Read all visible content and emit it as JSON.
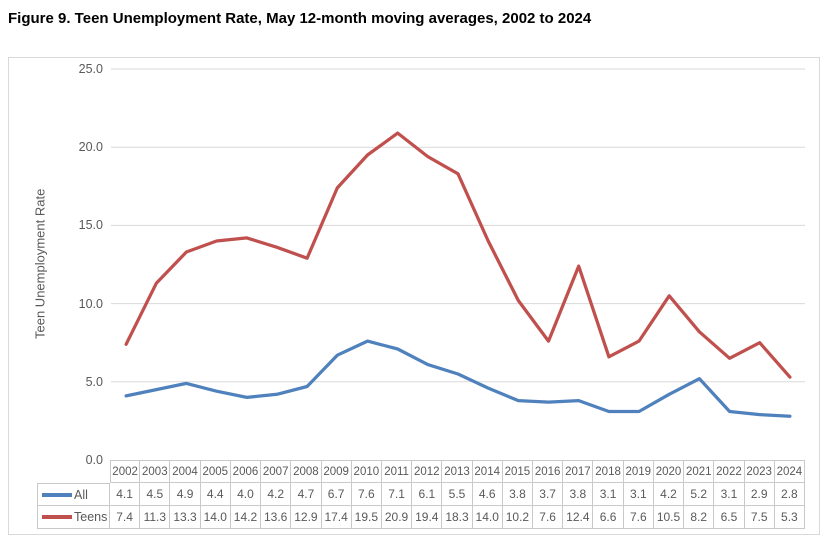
{
  "figure": {
    "title": "Figure 9. Teen Unemployment Rate, May 12-month moving averages, 2002 to 2024"
  },
  "chart_data": {
    "type": "line",
    "title": "Figure 9. Teen Unemployment Rate, May 12-month moving averages, 2002 to 2024",
    "xlabel": "",
    "ylabel": "Teen Unemployment Rate",
    "ylim": [
      0,
      25
    ],
    "yticks": [
      0,
      5,
      10,
      15,
      20,
      25
    ],
    "ytick_labels": [
      "0.0",
      "5.0",
      "10.0",
      "15.0",
      "20.0",
      "25.0"
    ],
    "grid": true,
    "legend_position": "data-table-left",
    "gridline_color": "#d9d9d9",
    "categories": [
      "2002",
      "2003",
      "2004",
      "2005",
      "2006",
      "2007",
      "2008",
      "2009",
      "2010",
      "2011",
      "2012",
      "2013",
      "2014",
      "2015",
      "2016",
      "2017",
      "2018",
      "2019",
      "2020",
      "2021",
      "2022",
      "2023",
      "2024"
    ],
    "series": [
      {
        "name": "All",
        "color": "#4F81BD",
        "values": [
          4.1,
          4.5,
          4.9,
          4.4,
          4.0,
          4.2,
          4.7,
          6.7,
          7.6,
          7.1,
          6.1,
          5.5,
          4.6,
          3.8,
          3.7,
          3.8,
          3.1,
          3.1,
          4.2,
          5.2,
          3.1,
          2.9,
          2.8
        ]
      },
      {
        "name": "Teens",
        "color": "#C0504D",
        "values": [
          7.4,
          11.3,
          13.3,
          14.0,
          14.2,
          13.6,
          12.9,
          17.4,
          19.5,
          20.9,
          19.4,
          18.3,
          14.0,
          10.2,
          7.6,
          12.4,
          6.6,
          7.6,
          10.5,
          8.2,
          6.5,
          7.5,
          5.3
        ]
      }
    ]
  }
}
